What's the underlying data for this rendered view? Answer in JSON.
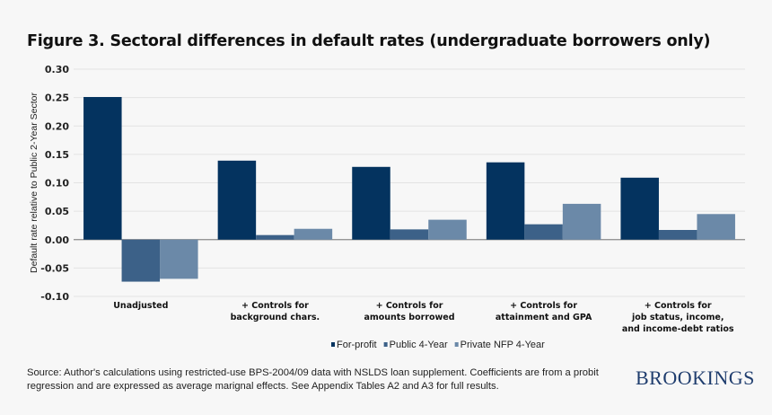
{
  "chart_data": {
    "type": "bar",
    "title": "Figure 3. Sectoral differences in default rates  (undergraduate  borrowers only)",
    "xlabel": "",
    "ylabel": "Default rate relative to Public  2-Year Sector",
    "ylim": [
      -0.1,
      0.3
    ],
    "yticks": [
      "0.30",
      "0.25",
      "0.20",
      "0.15",
      "0.10",
      "0.05",
      "0.00",
      "-0.05",
      "-0.10"
    ],
    "grid": true,
    "legend_position": "bottom",
    "categories": [
      [
        "Unadjusted"
      ],
      [
        "+ Controls for",
        "background chars."
      ],
      [
        "+ Controls for",
        "amounts borrowed"
      ],
      [
        "+ Controls for",
        "attainment and GPA"
      ],
      [
        "+ Controls for",
        "job status, income,",
        "and income-debt ratios"
      ]
    ],
    "series": [
      {
        "name": "For-profit",
        "color": "#04335f",
        "values": [
          0.251,
          0.139,
          0.128,
          0.136,
          0.109
        ]
      },
      {
        "name": "Public 4-Year",
        "color": "#3c6188",
        "values": [
          -0.074,
          0.008,
          0.018,
          0.027,
          0.017
        ]
      },
      {
        "name": "Private NFP 4-Year",
        "color": "#6b89a8",
        "values": [
          -0.069,
          0.019,
          0.035,
          0.063,
          0.045
        ]
      }
    ]
  },
  "footer": {
    "source": "Source: Author's calculations using restricted-use BPS-2004/09 data with NSLDS loan supplement. Coefficients are from a probit regression and are expressed as average marignal effects. See Appendix Tables A2 and A3 for full results.",
    "logo": "BROOKINGS"
  }
}
